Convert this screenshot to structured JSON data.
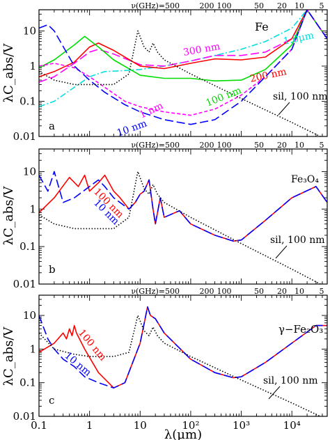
{
  "figure": {
    "ylabel": "λC_abs/V",
    "xlabel": "λ(μm)",
    "top_axis_label": "ν(GHz)=500",
    "top_ticks": [
      "200",
      "100",
      "50",
      "20",
      "10",
      "5"
    ],
    "x_tick_labels": [
      "0.1",
      "1",
      "10",
      "10²",
      "10³",
      "10⁴"
    ],
    "y_tick_labels": [
      "10",
      "1",
      "0.1",
      "0.01"
    ]
  },
  "chart_data": [
    {
      "panel": "a",
      "type": "line",
      "material": "Fe",
      "xscale": "log",
      "yscale": "log",
      "xlim": [
        0.1,
        50000
      ],
      "ylim": [
        0.01,
        40
      ],
      "xlabel": "",
      "ylabel": "λC_abs/V",
      "series": [
        {
          "name": "1.0μm",
          "color": "#00e0e0",
          "dash": "dashdot",
          "x": [
            0.1,
            0.2,
            0.5,
            1,
            2,
            5,
            10,
            30,
            100,
            300,
            1000,
            3000,
            10000,
            20000,
            50000
          ],
          "y": [
            0.07,
            0.1,
            0.25,
            0.5,
            0.7,
            0.75,
            0.8,
            1.0,
            1.4,
            2.0,
            3.0,
            5.0,
            12,
            40,
            6
          ]
        },
        {
          "name": "300 nm",
          "color": "#ff00ff",
          "dash": "longdash",
          "x": [
            0.1,
            0.2,
            0.5,
            1,
            1.5,
            3,
            10,
            30,
            100,
            300,
            1000,
            3000,
            10000,
            20000,
            50000
          ],
          "y": [
            0.35,
            0.5,
            1.2,
            2.5,
            3.0,
            2.2,
            1.1,
            1.0,
            1.4,
            2.0,
            2.0,
            2.5,
            6.0,
            40,
            6
          ]
        },
        {
          "name": "200 nm",
          "color": "#ff0000",
          "dash": "solid",
          "x": [
            0.1,
            0.2,
            0.5,
            1,
            1.5,
            3,
            10,
            30,
            100,
            300,
            1000,
            3000,
            10000,
            20000,
            50000
          ],
          "y": [
            0.5,
            0.7,
            1.3,
            3.5,
            4.5,
            2.8,
            1.0,
            0.85,
            1.2,
            1.6,
            1.5,
            1.8,
            6.0,
            40,
            6
          ]
        },
        {
          "name": "100 nm",
          "color": "#00dd00",
          "dash": "solid",
          "x": [
            0.1,
            0.2,
            0.5,
            0.8,
            1.5,
            3,
            10,
            30,
            100,
            300,
            1000,
            3000,
            10000,
            20000,
            50000
          ],
          "y": [
            0.9,
            1.5,
            4.0,
            7.0,
            3.5,
            1.5,
            0.55,
            0.45,
            0.45,
            0.38,
            0.4,
            0.8,
            4.0,
            40,
            6
          ]
        },
        {
          "name": "1 nm",
          "color": "#ff00ff",
          "dash": "dashed",
          "x": [
            0.1,
            0.2,
            0.5,
            1,
            2,
            5,
            10,
            30,
            100,
            300,
            1000,
            3000,
            10000,
            20000,
            50000
          ],
          "y": [
            1.0,
            1.2,
            0.9,
            0.5,
            0.25,
            0.1,
            0.07,
            0.05,
            0.04,
            0.06,
            0.15,
            0.5,
            3.0,
            40,
            6
          ]
        },
        {
          "name": "10 nm",
          "color": "#0000ff",
          "dash": "longdash",
          "x": [
            0.1,
            0.15,
            0.2,
            0.5,
            1,
            2,
            5,
            10,
            30,
            100,
            300,
            1000,
            3000,
            10000,
            20000,
            50000
          ],
          "y": [
            12,
            15,
            10,
            1.0,
            0.4,
            0.18,
            0.08,
            0.05,
            0.03,
            0.022,
            0.03,
            0.1,
            0.5,
            3.0,
            40,
            6
          ]
        },
        {
          "name": "sil, 100 nm",
          "color": "#000000",
          "dash": "dotted",
          "x": [
            0.1,
            0.2,
            0.5,
            1,
            3,
            6,
            9,
            12,
            15,
            18,
            22,
            30,
            100,
            1000,
            10000,
            50000
          ],
          "y": [
            0.7,
            0.4,
            0.3,
            0.3,
            0.3,
            0.6,
            10,
            3.5,
            2.5,
            4.5,
            2.5,
            1.5,
            0.6,
            0.12,
            0.025,
            0.008
          ]
        }
      ],
      "annotations": [
        "Fe",
        "a",
        "1.0μm",
        "300 nm",
        "200 nm",
        "100 nm",
        "1 nm",
        "10 nm",
        "sil, 100 nm"
      ]
    },
    {
      "panel": "b",
      "type": "line",
      "material": "Fe₃O₄",
      "xscale": "log",
      "yscale": "log",
      "xlim": [
        0.1,
        50000
      ],
      "ylim": [
        0.01,
        40
      ],
      "xlabel": "",
      "ylabel": "λC_abs/V",
      "series": [
        {
          "name": "100 nm",
          "color": "#ff0000",
          "dash": "solid",
          "x": [
            0.1,
            0.2,
            0.4,
            0.6,
            0.8,
            1.0,
            1.5,
            2,
            3,
            4,
            6,
            8,
            10,
            12,
            15,
            18,
            20,
            25,
            30,
            60,
            100,
            300,
            700,
            1000,
            3000,
            10000,
            30000,
            50000
          ],
          "y": [
            0.8,
            2.0,
            7.0,
            4.0,
            8.0,
            3.0,
            5.0,
            8.0,
            3.0,
            2.0,
            1.0,
            1.5,
            2.5,
            3.0,
            6.0,
            1.0,
            0.4,
            2.0,
            0.6,
            0.9,
            0.4,
            0.2,
            0.14,
            0.15,
            0.5,
            2.0,
            4.0,
            1.5
          ]
        },
        {
          "name": "10 nm",
          "color": "#0000ff",
          "dash": "longdash",
          "x": [
            0.1,
            0.15,
            0.2,
            0.3,
            0.5,
            1.0,
            1.5,
            2,
            3,
            4,
            6,
            8,
            10,
            12,
            15,
            18,
            20,
            25,
            30,
            60,
            100,
            300,
            700,
            1000,
            3000,
            10000,
            30000,
            50000
          ],
          "y": [
            8.0,
            3.0,
            10.0,
            1.5,
            2.0,
            4.0,
            6.0,
            4.0,
            2.0,
            1.5,
            1.0,
            1.5,
            2.5,
            3.0,
            6.0,
            1.0,
            0.4,
            2.0,
            0.6,
            0.9,
            0.4,
            0.2,
            0.14,
            0.15,
            0.5,
            2.0,
            4.0,
            1.5
          ]
        },
        {
          "name": "sil, 100 nm",
          "color": "#000000",
          "dash": "dotted",
          "x": [
            0.1,
            0.2,
            0.5,
            1,
            3,
            6,
            9,
            12,
            15,
            18,
            22,
            30,
            100,
            1000,
            10000,
            50000
          ],
          "y": [
            0.7,
            0.4,
            0.3,
            0.3,
            0.3,
            0.6,
            10,
            3.5,
            2.5,
            4.5,
            2.5,
            1.5,
            0.6,
            0.12,
            0.025,
            0.008
          ]
        }
      ],
      "annotations": [
        "Fe₃O₄",
        "b",
        "100 nm",
        "10 nm",
        "sil, 100 nm"
      ]
    },
    {
      "panel": "c",
      "type": "line",
      "material": "γ−Fe₂O₃",
      "xscale": "log",
      "yscale": "log",
      "xlim": [
        0.1,
        50000
      ],
      "ylim": [
        0.01,
        40
      ],
      "xlabel": "λ(μm)",
      "ylabel": "λC_abs/V",
      "series": [
        {
          "name": "100 nm",
          "color": "#ff0000",
          "dash": "solid",
          "x": [
            0.1,
            0.2,
            0.3,
            0.35,
            0.4,
            0.45,
            0.5,
            0.55,
            0.8,
            1.5,
            3,
            5,
            10,
            14,
            16,
            20,
            30,
            100,
            300,
            700,
            1000,
            3000,
            10000,
            30000,
            50000
          ],
          "y": [
            0.8,
            1.5,
            3.0,
            2.0,
            4.0,
            2.5,
            5.0,
            3.0,
            1.0,
            0.2,
            0.07,
            0.1,
            1.5,
            18,
            10,
            8.0,
            3.0,
            0.5,
            0.2,
            0.14,
            0.15,
            0.4,
            1.5,
            5.0,
            5.0
          ]
        },
        {
          "name": "10 nm",
          "color": "#0000ff",
          "dash": "longdash",
          "x": [
            0.1,
            0.15,
            0.2,
            0.3,
            0.5,
            0.8,
            1.5,
            3,
            5,
            10,
            14,
            16,
            20,
            30,
            100,
            300,
            700,
            1000,
            3000,
            10000,
            30000,
            50000
          ],
          "y": [
            10,
            2.0,
            1.0,
            0.5,
            0.3,
            0.15,
            0.1,
            0.07,
            0.1,
            1.5,
            18,
            10,
            8.0,
            3.0,
            0.5,
            0.2,
            0.14,
            0.15,
            0.4,
            1.5,
            5.0,
            5.0
          ]
        },
        {
          "name": "sil, 100 nm",
          "color": "#000000",
          "dash": "dotted",
          "x": [
            0.1,
            0.2,
            0.5,
            1,
            3,
            6,
            9,
            12,
            15,
            18,
            22,
            30,
            100,
            1000,
            10000,
            50000
          ],
          "y": [
            3.0,
            1.0,
            0.7,
            0.6,
            0.6,
            0.8,
            10,
            3.5,
            2.5,
            4.5,
            2.5,
            1.5,
            0.6,
            0.12,
            0.025,
            0.008
          ]
        }
      ],
      "annotations": [
        "γ−Fe₂O₃",
        "c",
        "100 nm",
        "10 nm",
        "sil, 100 nm"
      ]
    }
  ]
}
